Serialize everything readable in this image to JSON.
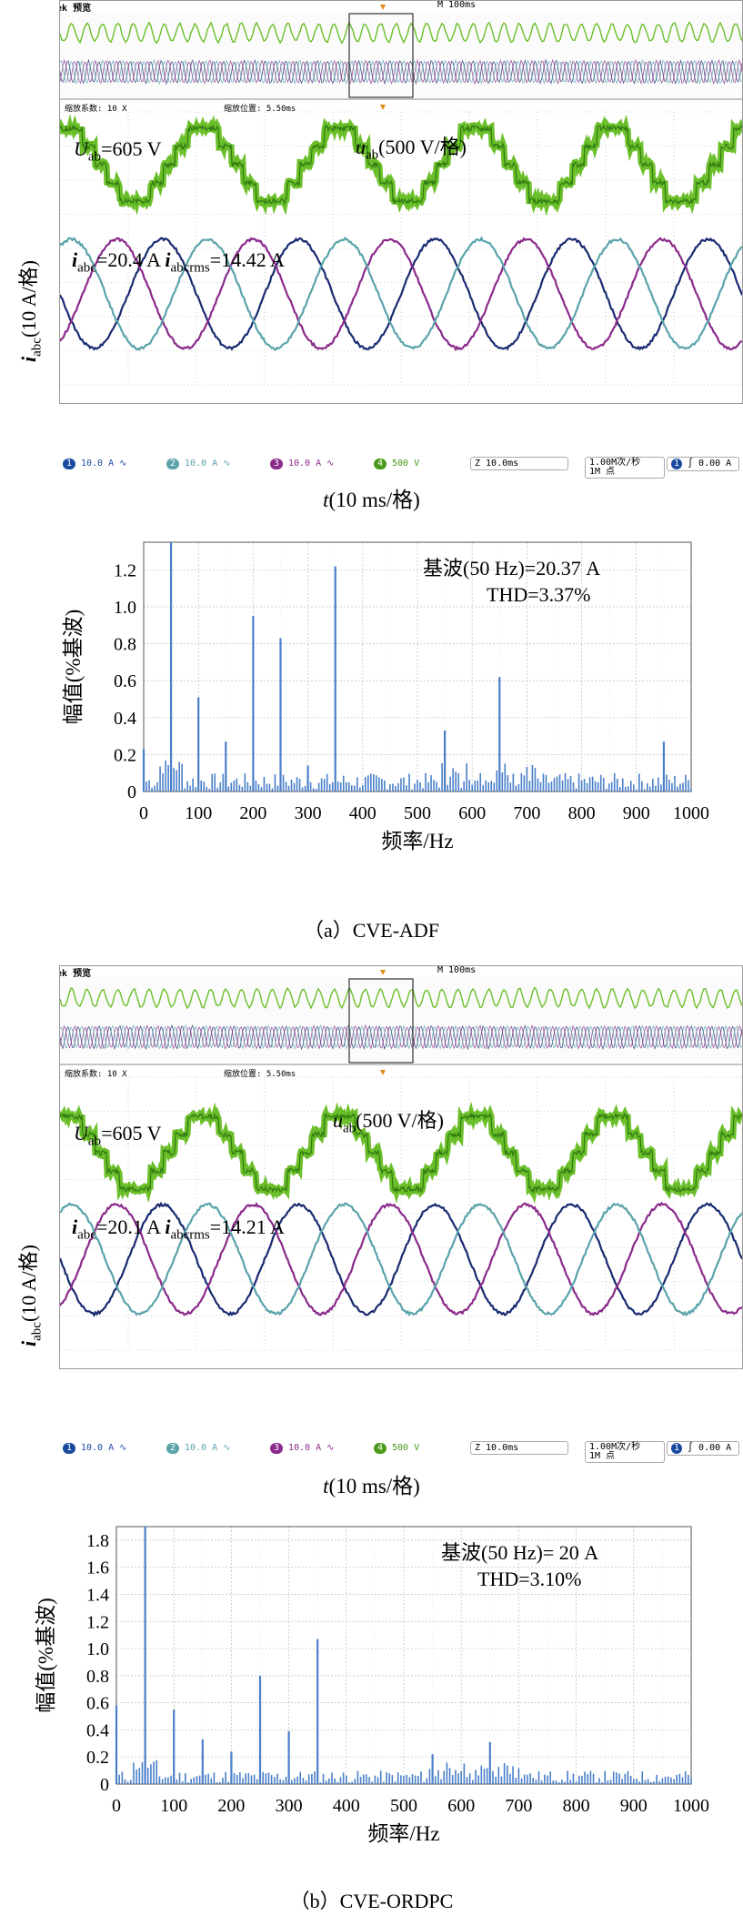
{
  "colors": {
    "green": "#6bbf2a",
    "dark_green": "#2f7a12",
    "navy": "#1a2a70",
    "purple": "#8a2a8a",
    "teal": "#5aa3aa",
    "spectrum": "#4a7fc8",
    "grid": "#aaaaaa"
  },
  "panels": [
    {
      "scope": {
        "header_left": "Tek 预览",
        "header_right": "M 100ms",
        "zoom_factor": "缩放系数: 10 X",
        "zoom_position": "缩放位置: 5.50ms",
        "u_label": "U",
        "u_sub": "ab",
        "u_value": "=605 V",
        "u_scale_u": "u",
        "u_scale_sub": "ab",
        "u_scale": "(500 V/格)",
        "i_label": "i",
        "i_sub": "abc",
        "i_value": "=20.4 A",
        "irms_label": "i",
        "irms_sub": "abcrms",
        "irms_value": "=14.42 A",
        "ch1": "10.0 A",
        "ch2": "10.0 A",
        "ch3": "10.0 A",
        "ch4": "500 V",
        "timebase": "Z 10.0ms",
        "sample_rate": "1.00M次/秒",
        "record_len": "1M 点",
        "trigger": "0.00 A",
        "y_axis": "(10 A/格)",
        "y_axis_i": "i",
        "y_axis_sub": "abc",
        "x_axis_t": "t",
        "x_axis": "(10 ms/格)"
      },
      "spectrum": {
        "fund_label": "基波(50 Hz)=20.37 A",
        "thd_label": "THD=3.37%"
      },
      "caption": "（a）CVE-ADF"
    },
    {
      "scope": {
        "header_left": "Tek 预览",
        "header_right": "M 100ms",
        "zoom_factor": "缩放系数: 10 X",
        "zoom_position": "缩放位置: 5.50ms",
        "u_label": "U",
        "u_sub": "ab",
        "u_value": "=605 V",
        "u_scale_u": "u",
        "u_scale_sub": "ab",
        "u_scale": "(500 V/格)",
        "i_label": "i",
        "i_sub": "abc",
        "i_value": "=20.1 A",
        "irms_label": "i",
        "irms_sub": "abcrms",
        "irms_value": "=14.21 A",
        "ch1": "10.0 A",
        "ch2": "10.0 A",
        "ch3": "10.0 A",
        "ch4": "500 V",
        "timebase": "Z 10.0ms",
        "sample_rate": "1.00M次/秒",
        "record_len": "1M 点",
        "trigger": "0.00 A",
        "y_axis": "(10 A/格)",
        "y_axis_i": "i",
        "y_axis_sub": "abc",
        "x_axis_t": "t",
        "x_axis": "(10 ms/格)"
      },
      "spectrum": {
        "fund_label": "基波(50 Hz)= 20 A",
        "thd_label": "THD=3.10%"
      },
      "caption": "（b）CVE-ORDPC"
    }
  ],
  "chart_data": [
    {
      "type": "bar",
      "ylabel": "幅值(%基波)",
      "xlabel": "频率/Hz",
      "xlim": [
        0,
        1000
      ],
      "ylim": [
        0,
        1.35
      ],
      "xticks": [
        0,
        100,
        200,
        300,
        400,
        500,
        600,
        700,
        800,
        900,
        1000
      ],
      "yticks": [
        0,
        0.2,
        0.4,
        0.6,
        0.8,
        1.0,
        1.2
      ],
      "ytick_labels": [
        "0",
        "0.2",
        "0.4",
        "0.6",
        "0.8",
        "1.0",
        "1.2"
      ],
      "x": [
        0,
        50,
        100,
        150,
        200,
        250,
        300,
        350,
        550,
        650,
        950
      ],
      "values": [
        0.23,
        1.37,
        0.51,
        0.27,
        0.95,
        0.83,
        0.14,
        1.22,
        0.33,
        0.62,
        0.27
      ],
      "fundamental_hz": 50,
      "fundamental_a": 20.37,
      "thd_percent": 3.37
    },
    {
      "type": "bar",
      "ylabel": "幅值(%基波)",
      "xlabel": "频率/Hz",
      "xlim": [
        0,
        1000
      ],
      "ylim": [
        0,
        1.9
      ],
      "xticks": [
        0,
        100,
        200,
        300,
        400,
        500,
        600,
        700,
        800,
        900,
        1000
      ],
      "yticks": [
        0,
        0.2,
        0.4,
        0.6,
        0.8,
        1.0,
        1.2,
        1.4,
        1.6,
        1.8
      ],
      "ytick_labels": [
        "0",
        "0.2",
        "0.4",
        "0.6",
        "0.8",
        "1.0",
        "1.2",
        "1.4",
        "1.6",
        "1.8"
      ],
      "x": [
        0,
        50,
        100,
        150,
        200,
        250,
        300,
        350,
        550,
        650
      ],
      "values": [
        0.58,
        1.9,
        0.55,
        0.33,
        0.24,
        0.8,
        0.39,
        1.07,
        0.22,
        0.31
      ],
      "fundamental_hz": 50,
      "fundamental_a": 20,
      "thd_percent": 3.1
    }
  ]
}
